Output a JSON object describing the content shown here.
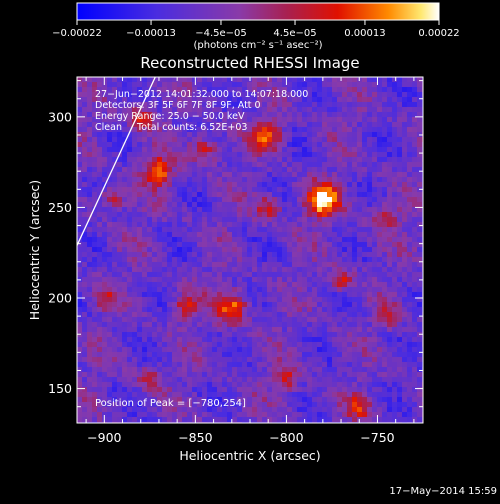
{
  "chart_data": {
    "type": "heatmap",
    "title": "Reconstructed RHESSI Image",
    "xlabel": "Heliocentric X (arcsec)",
    "ylabel": "Heliocentric Y (arcsec)",
    "xlim": [
      -915,
      -725
    ],
    "ylim": [
      131,
      322
    ],
    "x_ticks": [
      -900,
      -850,
      -800,
      -750
    ],
    "x_tick_labels": [
      "−900",
      "−850",
      "−800",
      "−750"
    ],
    "y_ticks": [
      150,
      200,
      250,
      300
    ],
    "y_tick_labels": [
      "150",
      "200",
      "250",
      "300"
    ],
    "colorbar": {
      "ticks": [
        -0.00022,
        -0.00013,
        -4.5e-05,
        4.5e-05,
        0.00013,
        0.00022
      ],
      "tick_labels": [
        "−0.00022",
        "−0.00013",
        "−4.5e−05",
        "4.5e−05",
        "0.00013",
        "0.00022"
      ],
      "range": [
        -0.00022,
        0.00022
      ],
      "colors": [
        "#0000ff",
        "#5a2bd6",
        "#8b3ba8",
        "#cc2200",
        "#ff8800",
        "#ffffff"
      ]
    },
    "units_label": "(photons cm⁻² s⁻¹ asec⁻²)",
    "info_lines": [
      "27−Jun−2012 14:01:32.000 to 14:07:18.000",
      "Detectors: 3F 5F 6F 7F 8F 9F, Att 0",
      "Energy Range: 25.0 − 50.0 keV",
      "Clean     Total counts: 6.52E+03"
    ],
    "peak_label": "Position of Peak = [−780,254]",
    "peak_position": [
      -780,
      254
    ],
    "limb_line": [
      [
        -915,
        229
      ],
      [
        -872,
        322
      ]
    ],
    "grid": false
  },
  "footer": {
    "timestamp": "17−May−2014 15:59"
  }
}
